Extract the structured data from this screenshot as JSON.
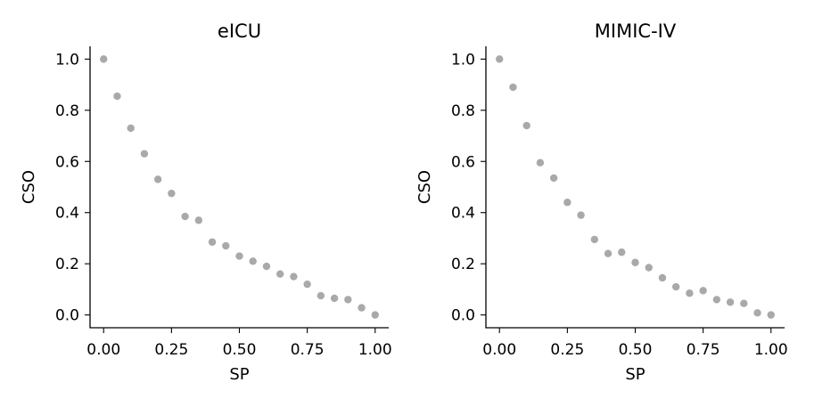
{
  "chart_data": [
    {
      "type": "scatter",
      "title": "eICU",
      "xlabel": "SP",
      "ylabel": "CSO",
      "xlim": [
        -0.05,
        1.05
      ],
      "ylim": [
        -0.05,
        1.05
      ],
      "xticks": [
        0.0,
        0.25,
        0.5,
        0.75,
        1.0
      ],
      "xtick_labels": [
        "0.00",
        "0.25",
        "0.50",
        "0.75",
        "1.00"
      ],
      "yticks": [
        0.0,
        0.2,
        0.4,
        0.6,
        0.8,
        1.0
      ],
      "ytick_labels": [
        "0.0",
        "0.2",
        "0.4",
        "0.6",
        "0.8",
        "1.0"
      ],
      "grid": false,
      "color": "#a9a9a9",
      "x": [
        0.0,
        0.05,
        0.1,
        0.15,
        0.2,
        0.25,
        0.3,
        0.35,
        0.4,
        0.45,
        0.5,
        0.55,
        0.6,
        0.65,
        0.7,
        0.75,
        0.8,
        0.85,
        0.9,
        0.95,
        1.0
      ],
      "y": [
        1.0,
        0.855,
        0.73,
        0.63,
        0.53,
        0.475,
        0.385,
        0.37,
        0.285,
        0.27,
        0.23,
        0.21,
        0.19,
        0.16,
        0.15,
        0.12,
        0.075,
        0.065,
        0.06,
        0.028,
        0.0
      ]
    },
    {
      "type": "scatter",
      "title": "MIMIC-IV",
      "xlabel": "SP",
      "ylabel": "CSO",
      "xlim": [
        -0.05,
        1.05
      ],
      "ylim": [
        -0.05,
        1.05
      ],
      "xticks": [
        0.0,
        0.25,
        0.5,
        0.75,
        1.0
      ],
      "xtick_labels": [
        "0.00",
        "0.25",
        "0.50",
        "0.75",
        "1.00"
      ],
      "yticks": [
        0.0,
        0.2,
        0.4,
        0.6,
        0.8,
        1.0
      ],
      "ytick_labels": [
        "0.0",
        "0.2",
        "0.4",
        "0.6",
        "0.8",
        "1.0"
      ],
      "grid": false,
      "color": "#a9a9a9",
      "x": [
        0.0,
        0.05,
        0.1,
        0.15,
        0.2,
        0.25,
        0.3,
        0.35,
        0.4,
        0.45,
        0.5,
        0.55,
        0.6,
        0.65,
        0.7,
        0.75,
        0.8,
        0.85,
        0.9,
        0.95,
        1.0
      ],
      "y": [
        1.0,
        0.89,
        0.74,
        0.595,
        0.535,
        0.44,
        0.39,
        0.295,
        0.24,
        0.245,
        0.205,
        0.185,
        0.145,
        0.11,
        0.085,
        0.095,
        0.06,
        0.05,
        0.045,
        0.008,
        0.0
      ]
    }
  ]
}
